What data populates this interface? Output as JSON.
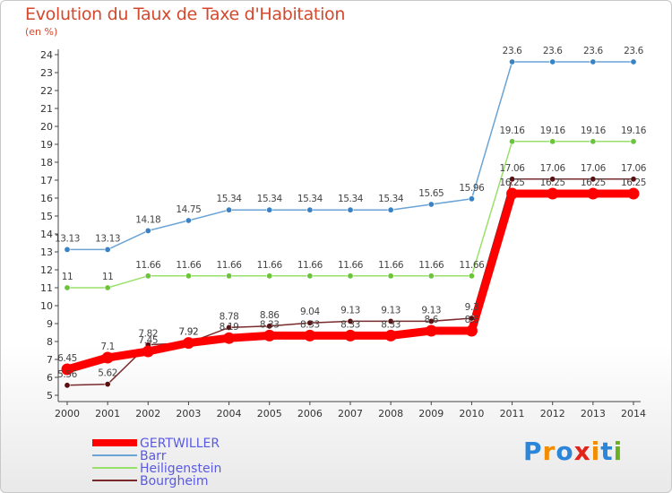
{
  "chart_data": {
    "type": "line",
    "title": "Evolution du Taux de Taxe d'Habitation",
    "unit_label": "(en %)",
    "x": [
      "2000",
      "2001",
      "2002",
      "2003",
      "2004",
      "2005",
      "2006",
      "2007",
      "2008",
      "2009",
      "2010",
      "2011",
      "2012",
      "2013",
      "2014"
    ],
    "ylim": [
      5,
      24
    ],
    "yticks": [
      "5",
      "6",
      "7",
      "8",
      "9",
      "10",
      "11",
      "12",
      "13",
      "14",
      "15",
      "16",
      "17",
      "18",
      "19",
      "20",
      "21",
      "22",
      "23",
      "24"
    ],
    "grid": false,
    "legend_position": "bottom-left",
    "series": [
      {
        "name": "GERTWILLER",
        "color": "#ff0000",
        "marker_color": "#ff0000",
        "values": [
          6.45,
          7.1,
          7.45,
          7.92,
          8.19,
          8.33,
          8.33,
          8.33,
          8.33,
          8.6,
          8.6,
          16.25,
          16.25,
          16.25,
          16.25
        ],
        "labels": [
          "6.45",
          "7.1",
          "7.45",
          "7.92",
          "8.19",
          "8.33",
          "8.33",
          "8.33",
          "8.33",
          "8.6",
          "8.6",
          "16.25",
          "16.25",
          "16.25",
          "16.25"
        ]
      },
      {
        "name": "Barr",
        "color": "#6aa3d5",
        "marker_color": "#3b82c4",
        "values": [
          13.13,
          13.13,
          14.18,
          14.75,
          15.34,
          15.34,
          15.34,
          15.34,
          15.34,
          15.65,
          15.96,
          23.6,
          23.6,
          23.6,
          23.6
        ],
        "labels": [
          "13.13",
          "13.13",
          "14.18",
          "14.75",
          "15.34",
          "15.34",
          "15.34",
          "15.34",
          "15.34",
          "15.65",
          "15.96",
          "23.6",
          "23.6",
          "23.6",
          "23.6"
        ]
      },
      {
        "name": "Heiligenstein",
        "color": "#99e06a",
        "marker_color": "#6cc43c",
        "values": [
          11,
          11,
          11.66,
          11.66,
          11.66,
          11.66,
          11.66,
          11.66,
          11.66,
          11.66,
          11.66,
          19.16,
          19.16,
          19.16,
          19.16
        ],
        "labels": [
          "11",
          "11",
          "11.66",
          "11.66",
          "11.66",
          "11.66",
          "11.66",
          "11.66",
          "11.66",
          "11.66",
          "11.66",
          "19.16",
          "19.16",
          "19.16",
          "19.16"
        ]
      },
      {
        "name": "Bourgheim",
        "color": "#7a2a2a",
        "marker_color": "#5a1010",
        "values": [
          5.56,
          5.62,
          7.82,
          7.92,
          8.78,
          8.86,
          9.04,
          9.13,
          9.13,
          9.13,
          9.3,
          17.06,
          17.06,
          17.06,
          17.06
        ],
        "labels": [
          "5.56",
          "5.62",
          "7.82",
          "7.92",
          "8.78",
          "8.86",
          "9.04",
          "9.13",
          "9.13",
          "9.13",
          "9.3",
          "17.06",
          "17.06",
          "17.06",
          "17.06"
        ]
      }
    ]
  },
  "branding": {
    "logo_letters": [
      "P",
      "r",
      "o",
      "x",
      "i",
      "t",
      "i"
    ],
    "logo_colors": [
      "#2b86d9",
      "#f28c00",
      "#2b86d9",
      "#e2231a",
      "#f28c00",
      "#2b86d9",
      "#6ab023"
    ]
  }
}
